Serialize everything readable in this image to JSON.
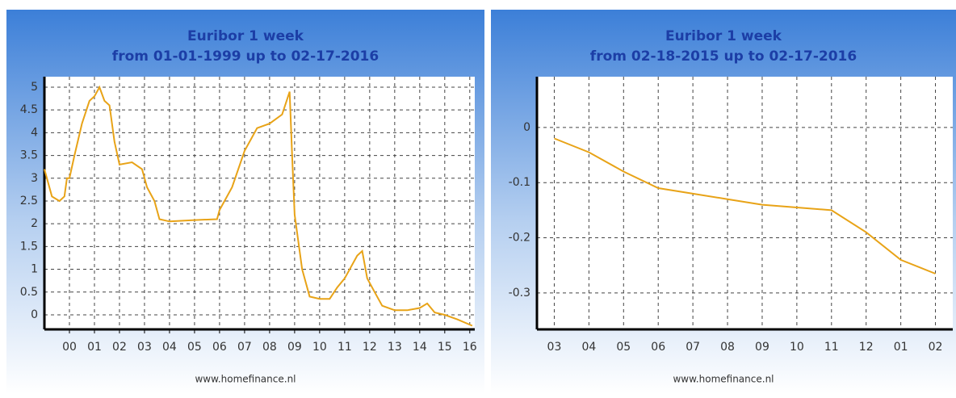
{
  "chart_data": [
    {
      "type": "line",
      "title": "Euribor 1 week",
      "subtitle": "from 01-01-1999 up to 02-17-2016",
      "annotation": "www.homefinance.nl",
      "x": [
        1999.0,
        1999.1,
        1999.3,
        1999.6,
        1999.8,
        1999.9,
        2000.0,
        2000.2,
        2000.5,
        2000.8,
        2001.0,
        2001.2,
        2001.4,
        2001.6,
        2001.8,
        2002.0,
        2002.5,
        2002.9,
        2003.1,
        2003.4,
        2003.6,
        2004.0,
        2005.0,
        2005.9,
        2006.0,
        2006.5,
        2007.0,
        2007.5,
        2008.0,
        2008.5,
        2008.8,
        2008.9,
        2009.0,
        2009.3,
        2009.6,
        2010.0,
        2010.4,
        2010.7,
        2011.0,
        2011.5,
        2011.7,
        2011.9,
        2012.2,
        2012.5,
        2013.0,
        2013.5,
        2014.0,
        2014.3,
        2014.6,
        2015.0,
        2015.5,
        2016.1
      ],
      "values": [
        3.2,
        3.0,
        2.6,
        2.5,
        2.6,
        3.0,
        3.0,
        3.5,
        4.2,
        4.7,
        4.8,
        5.0,
        4.7,
        4.6,
        3.8,
        3.3,
        3.35,
        3.2,
        2.8,
        2.5,
        2.1,
        2.05,
        2.08,
        2.1,
        2.3,
        2.8,
        3.6,
        4.1,
        4.2,
        4.4,
        4.9,
        3.5,
        2.2,
        1.0,
        0.4,
        0.35,
        0.35,
        0.6,
        0.8,
        1.3,
        1.4,
        0.8,
        0.5,
        0.2,
        0.1,
        0.1,
        0.15,
        0.25,
        0.05,
        0.0,
        -0.1,
        -0.24
      ],
      "color": "#e8a317",
      "xlim": [
        1999,
        2016.2
      ],
      "xticks": [
        {
          "value": 2000,
          "label": "00"
        },
        {
          "value": 2001,
          "label": "01"
        },
        {
          "value": 2002,
          "label": "02"
        },
        {
          "value": 2003,
          "label": "03"
        },
        {
          "value": 2004,
          "label": "04"
        },
        {
          "value": 2005,
          "label": "05"
        },
        {
          "value": 2006,
          "label": "06"
        },
        {
          "value": 2007,
          "label": "07"
        },
        {
          "value": 2008,
          "label": "08"
        },
        {
          "value": 2009,
          "label": "09"
        },
        {
          "value": 2010,
          "label": "10"
        },
        {
          "value": 2011,
          "label": "11"
        },
        {
          "value": 2012,
          "label": "12"
        },
        {
          "value": 2013,
          "label": "13"
        },
        {
          "value": 2014,
          "label": "14"
        },
        {
          "value": 2015,
          "label": "15"
        },
        {
          "value": 2016,
          "label": "16"
        }
      ],
      "ylim": [
        -0.32,
        5.23
      ],
      "yticks": [
        0,
        0.5,
        1,
        1.5,
        2,
        2.5,
        3,
        3.5,
        4,
        4.5,
        5
      ],
      "grid": true
    },
    {
      "type": "line",
      "title": "Euribor 1 week",
      "subtitle": "from 02-18-2015 up to 02-17-2016",
      "annotation": "www.homefinance.nl",
      "categories": [
        "03",
        "04",
        "05",
        "06",
        "07",
        "08",
        "09",
        "10",
        "11",
        "12",
        "01",
        "02"
      ],
      "values": [
        -0.02,
        -0.045,
        -0.08,
        -0.11,
        -0.12,
        -0.13,
        -0.14,
        -0.145,
        -0.15,
        -0.19,
        -0.24,
        -0.265
      ],
      "color": "#e8a317",
      "ylim": [
        -0.366,
        0.092
      ],
      "yticks": [
        0,
        -0.1,
        -0.2,
        -0.3
      ],
      "grid": true
    }
  ]
}
